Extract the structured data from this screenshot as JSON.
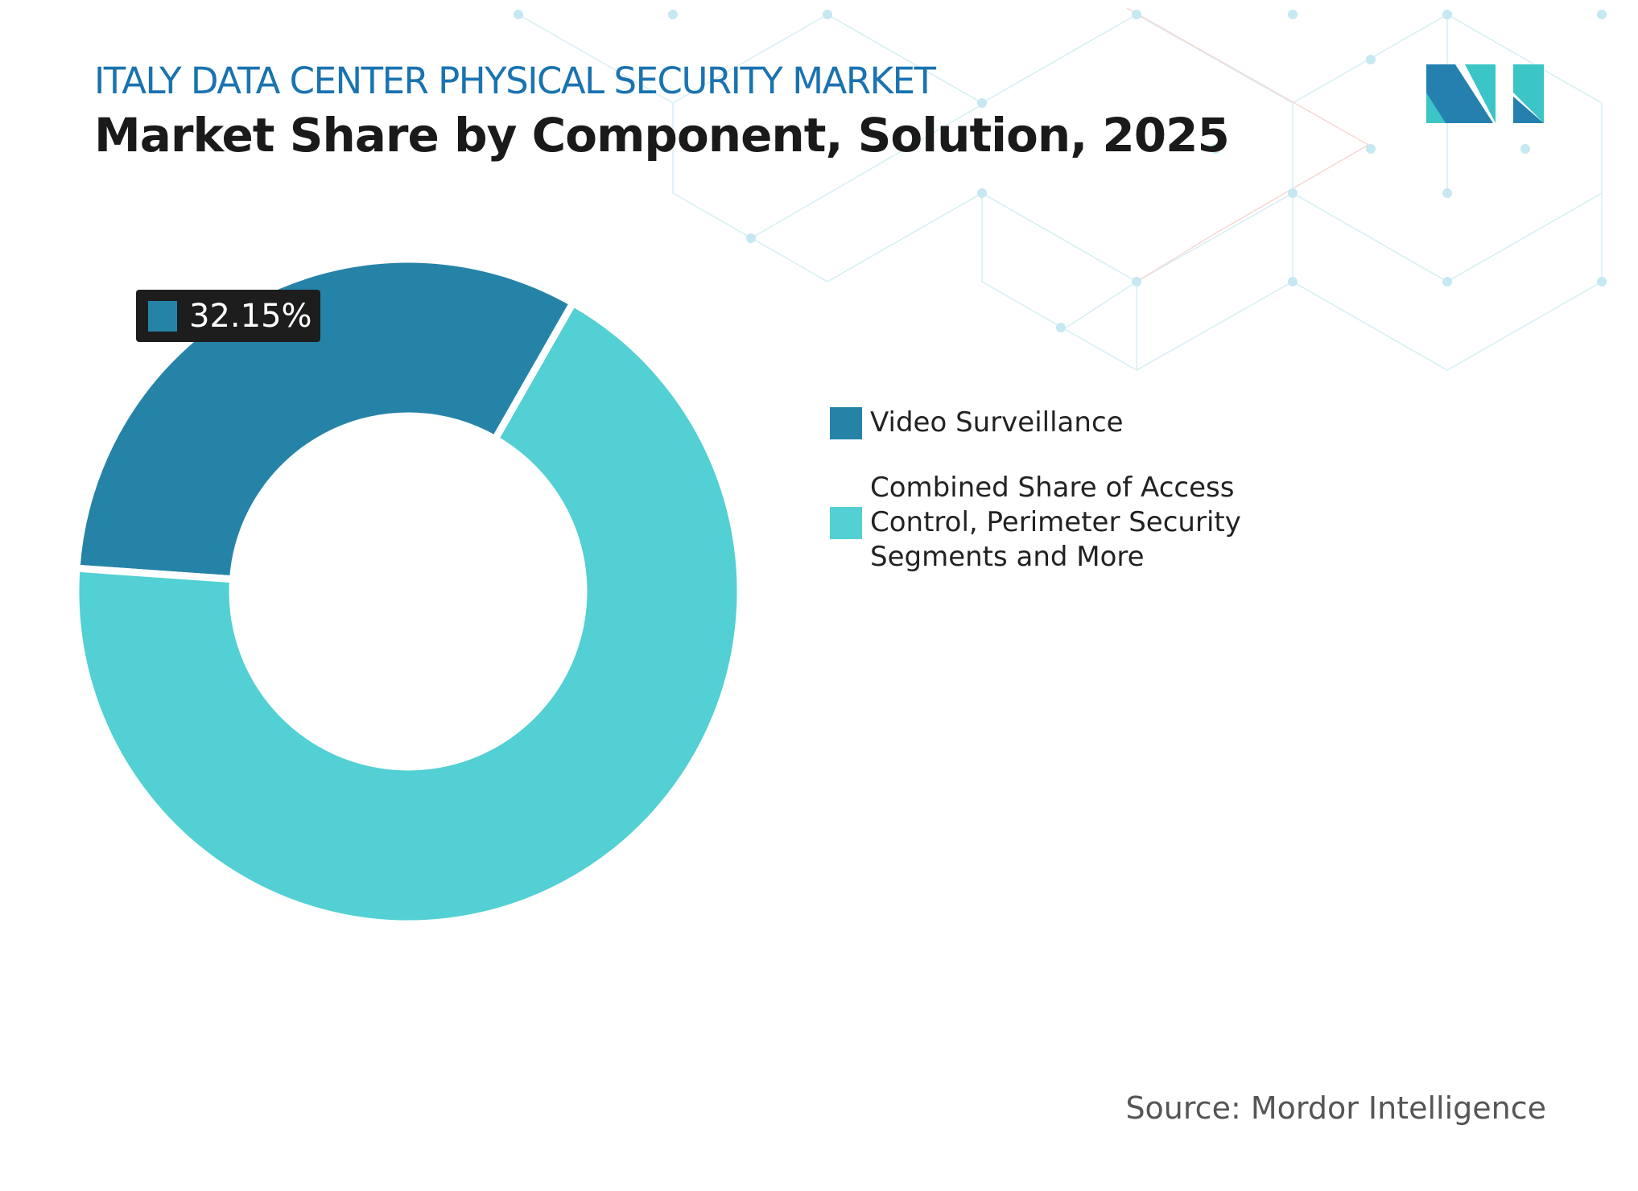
{
  "header": {
    "pretitle": "ITALY DATA CENTER PHYSICAL SECURITY MARKET",
    "title": "Market Share by Component, Solution, 2025"
  },
  "source": "Source: Mordor Intelligence",
  "logo": {
    "name": "mordor-intelligence-logo",
    "colors": [
      "#2580b0",
      "#3cc5c6"
    ]
  },
  "chart_data": {
    "type": "pie",
    "donut": true,
    "title": "Market Share by Component, Solution, 2025",
    "series": [
      {
        "name": "Video Surveillance",
        "value": 32.15,
        "color": "#2683a8",
        "label": "32.15%"
      },
      {
        "name": "Combined Share of Access Control, Perimeter Security Segments and More",
        "value": 67.85,
        "color": "#52d0d3"
      }
    ],
    "legend_placement": "right"
  },
  "legend": [
    {
      "label": "Video Surveillance"
    },
    {
      "lines": [
        "Combined Share of Access",
        "Control, Perimeter Security",
        "Segments and More"
      ]
    }
  ]
}
